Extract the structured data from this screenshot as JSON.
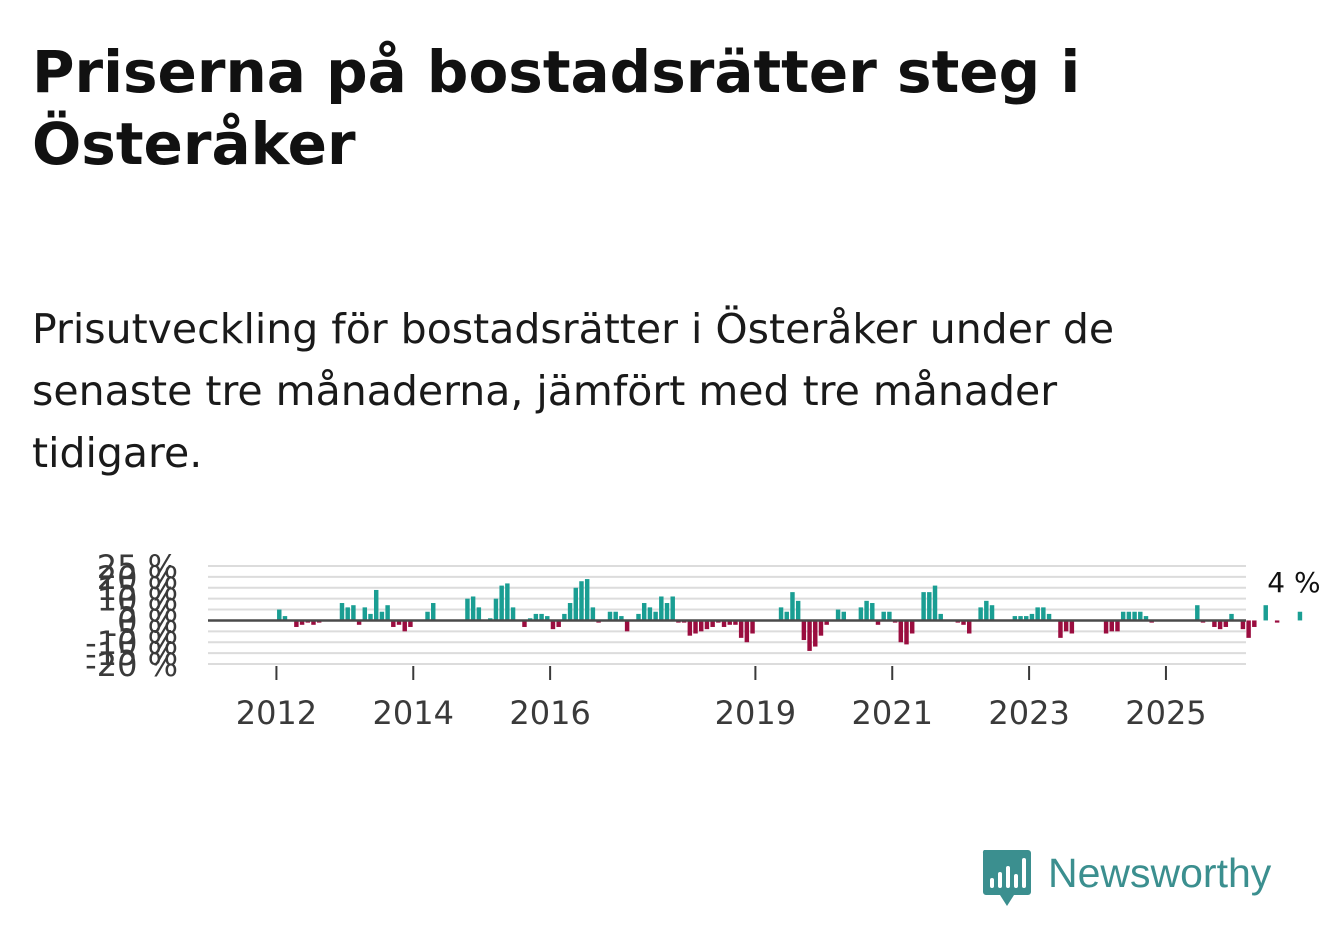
{
  "title": "Priserna på bostadsrätter steg i Österåker",
  "subtitle": "Prisutveckling för bostadsrätter i Österåker under de senaste tre månaderna, jämfört med tre månader tidigare.",
  "brand": {
    "name": "Newsworthy",
    "color": "#3b8f8f",
    "icon": "newsworthy-logo-icon"
  },
  "chart_data": {
    "type": "bar",
    "title": "",
    "xlabel": "",
    "ylabel": "",
    "ylim": [
      -20,
      25
    ],
    "grid": true,
    "y_ticks": [
      25,
      20,
      15,
      10,
      5,
      0,
      -5,
      -10,
      -15,
      -20
    ],
    "y_tick_labels": [
      "25 %",
      "20 %",
      "15 %",
      "10 %",
      "5 %",
      "0 %",
      "-5 %",
      "-10 %",
      "-15 %",
      "-20 %"
    ],
    "x_ticks": [
      2012,
      2014,
      2016,
      2019,
      2021,
      2023,
      2025
    ],
    "x_tick_labels": [
      "2012",
      "2014",
      "2016",
      "2019",
      "2021",
      "2023",
      "2025"
    ],
    "x_start": 2011.0,
    "x_end": 2026.17,
    "months_per_bar": 1,
    "positive_color": "#1a9e93",
    "negative_color": "#9a0d3f",
    "last_value_label": "4 %",
    "values": [
      0,
      0,
      0,
      0,
      0,
      0,
      0,
      0,
      0,
      0,
      0,
      0,
      5,
      2,
      0,
      -3,
      -2,
      -1,
      -2,
      -1,
      0,
      0,
      0,
      8,
      6,
      7,
      -2,
      6,
      3,
      14,
      4,
      7,
      -3,
      -2,
      -5,
      -3,
      0,
      0,
      4,
      8,
      0,
      0,
      0,
      0,
      0,
      10,
      11,
      6,
      0,
      1,
      10,
      16,
      17,
      6,
      0,
      -3,
      1,
      3,
      3,
      2,
      -4,
      -3,
      3,
      8,
      15,
      18,
      19,
      6,
      -1,
      0,
      4,
      4,
      2,
      -5,
      0,
      3,
      8,
      6,
      4,
      11,
      8,
      11,
      -1,
      -1,
      -7,
      -6,
      -5,
      -4,
      -3,
      -1,
      -3,
      -2,
      -2,
      -8,
      -10,
      -6,
      0,
      0,
      0,
      0,
      6,
      4,
      13,
      9,
      -9,
      -14,
      -12,
      -7,
      -2,
      0,
      5,
      4,
      0,
      0,
      6,
      9,
      8,
      -2,
      4,
      4,
      -1,
      -10,
      -11,
      -6,
      0,
      13,
      13,
      16,
      3,
      0,
      0,
      -1,
      -2,
      -6,
      0,
      6,
      9,
      7,
      0,
      0,
      0,
      2,
      2,
      2,
      3,
      6,
      6,
      3,
      0,
      -8,
      -5,
      -6,
      0,
      0,
      0,
      0,
      0,
      -6,
      -5,
      -5,
      4,
      4,
      4,
      4,
      2,
      -1,
      0,
      0,
      0,
      0,
      0,
      0,
      0,
      7,
      -1,
      0,
      -3,
      -4,
      -3,
      3,
      0,
      -4,
      -8,
      -3,
      0,
      7,
      0,
      -1,
      0,
      0,
      0,
      4
    ]
  }
}
